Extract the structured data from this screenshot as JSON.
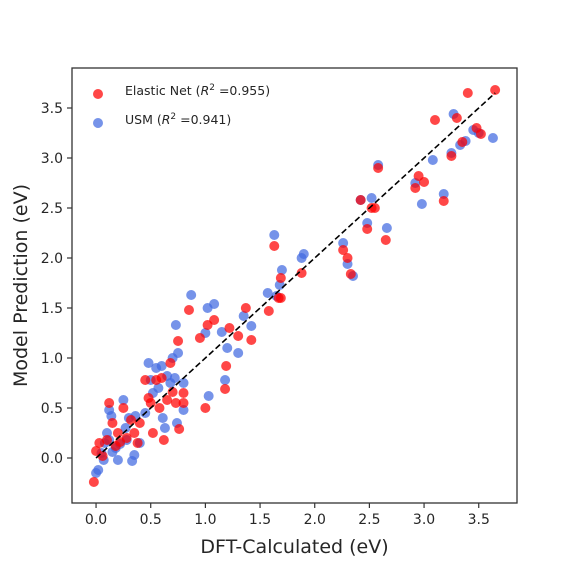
{
  "chart_data": {
    "type": "scatter",
    "title": "",
    "xlabel": "DFT-Calculated (eV)",
    "ylabel": "Model Prediction (eV)",
    "xlim": [
      -0.22,
      3.85
    ],
    "ylim": [
      -0.45,
      3.9
    ],
    "xticks": [
      "0.0",
      "0.5",
      "1.0",
      "1.5",
      "2.0",
      "2.5",
      "3.0",
      "3.5"
    ],
    "yticks": [
      "0.0",
      "0.5",
      "1.0",
      "1.5",
      "2.0",
      "2.5",
      "3.0",
      "3.5"
    ],
    "grid": false,
    "legend_position": "top-left",
    "reference_line": {
      "style": "dashed",
      "color": "#000000",
      "from": [
        0.0,
        0.0
      ],
      "to": [
        3.65,
        3.65
      ]
    },
    "series": [
      {
        "name": "USM",
        "r2": "0.941",
        "color": "#4169E1",
        "points": [
          [
            0.0,
            -0.15
          ],
          [
            0.02,
            -0.12
          ],
          [
            0.05,
            0.05
          ],
          [
            0.07,
            -0.02
          ],
          [
            0.08,
            0.15
          ],
          [
            0.1,
            0.25
          ],
          [
            0.12,
            0.48
          ],
          [
            0.12,
            0.18
          ],
          [
            0.14,
            0.42
          ],
          [
            0.15,
            0.06
          ],
          [
            0.18,
            0.1
          ],
          [
            0.2,
            -0.02
          ],
          [
            0.22,
            0.14
          ],
          [
            0.25,
            0.58
          ],
          [
            0.27,
            0.3
          ],
          [
            0.28,
            0.18
          ],
          [
            0.3,
            0.4
          ],
          [
            0.33,
            -0.03
          ],
          [
            0.35,
            0.03
          ],
          [
            0.36,
            0.42
          ],
          [
            0.4,
            0.15
          ],
          [
            0.45,
            0.45
          ],
          [
            0.48,
            0.95
          ],
          [
            0.5,
            0.78
          ],
          [
            0.52,
            0.65
          ],
          [
            0.55,
            0.9
          ],
          [
            0.57,
            0.7
          ],
          [
            0.6,
            0.92
          ],
          [
            0.61,
            0.4
          ],
          [
            0.63,
            0.3
          ],
          [
            0.65,
            0.82
          ],
          [
            0.68,
            0.75
          ],
          [
            0.7,
            1.0
          ],
          [
            0.72,
            0.8
          ],
          [
            0.73,
            1.33
          ],
          [
            0.74,
            0.35
          ],
          [
            0.75,
            1.05
          ],
          [
            0.8,
            0.75
          ],
          [
            0.8,
            0.48
          ],
          [
            0.87,
            1.63
          ],
          [
            1.0,
            1.25
          ],
          [
            1.02,
            1.5
          ],
          [
            1.03,
            0.62
          ],
          [
            1.08,
            1.54
          ],
          [
            1.15,
            1.26
          ],
          [
            1.18,
            0.78
          ],
          [
            1.2,
            1.1
          ],
          [
            1.3,
            1.05
          ],
          [
            1.35,
            1.42
          ],
          [
            1.42,
            1.32
          ],
          [
            1.57,
            1.65
          ],
          [
            1.63,
            2.23
          ],
          [
            1.65,
            1.62
          ],
          [
            1.68,
            1.73
          ],
          [
            1.7,
            1.88
          ],
          [
            1.88,
            2.0
          ],
          [
            1.9,
            2.04
          ],
          [
            2.26,
            2.15
          ],
          [
            2.3,
            1.94
          ],
          [
            2.35,
            1.82
          ],
          [
            2.42,
            2.58
          ],
          [
            2.48,
            2.35
          ],
          [
            2.52,
            2.6
          ],
          [
            2.58,
            2.93
          ],
          [
            2.66,
            2.3
          ],
          [
            2.92,
            2.75
          ],
          [
            2.98,
            2.54
          ],
          [
            3.08,
            2.98
          ],
          [
            3.18,
            2.64
          ],
          [
            3.25,
            3.05
          ],
          [
            3.27,
            3.44
          ],
          [
            3.33,
            3.13
          ],
          [
            3.38,
            3.17
          ],
          [
            3.45,
            3.28
          ],
          [
            3.5,
            3.25
          ],
          [
            3.63,
            3.2
          ]
        ]
      },
      {
        "name": "Elastic Net",
        "r2": "0.955",
        "color": "#FF0000",
        "points": [
          [
            -0.02,
            -0.24
          ],
          [
            0.0,
            0.07
          ],
          [
            0.03,
            0.15
          ],
          [
            0.06,
            0.02
          ],
          [
            0.1,
            0.18
          ],
          [
            0.12,
            0.55
          ],
          [
            0.15,
            0.35
          ],
          [
            0.18,
            0.12
          ],
          [
            0.2,
            0.25
          ],
          [
            0.22,
            0.16
          ],
          [
            0.25,
            0.5
          ],
          [
            0.28,
            0.2
          ],
          [
            0.32,
            0.38
          ],
          [
            0.35,
            0.25
          ],
          [
            0.38,
            0.15
          ],
          [
            0.4,
            0.35
          ],
          [
            0.45,
            0.78
          ],
          [
            0.48,
            0.6
          ],
          [
            0.5,
            0.55
          ],
          [
            0.52,
            0.25
          ],
          [
            0.55,
            0.78
          ],
          [
            0.58,
            0.5
          ],
          [
            0.6,
            0.8
          ],
          [
            0.62,
            0.18
          ],
          [
            0.65,
            0.58
          ],
          [
            0.68,
            0.95
          ],
          [
            0.7,
            0.66
          ],
          [
            0.73,
            0.55
          ],
          [
            0.75,
            1.17
          ],
          [
            0.76,
            0.29
          ],
          [
            0.8,
            0.65
          ],
          [
            0.8,
            0.55
          ],
          [
            0.85,
            1.48
          ],
          [
            0.95,
            1.2
          ],
          [
            1.0,
            0.5
          ],
          [
            1.02,
            1.33
          ],
          [
            1.08,
            1.38
          ],
          [
            1.18,
            0.69
          ],
          [
            1.19,
            0.92
          ],
          [
            1.22,
            1.3
          ],
          [
            1.3,
            1.22
          ],
          [
            1.37,
            1.5
          ],
          [
            1.42,
            1.18
          ],
          [
            1.58,
            1.47
          ],
          [
            1.63,
            2.12
          ],
          [
            1.67,
            1.6
          ],
          [
            1.69,
            1.6
          ],
          [
            1.69,
            1.8
          ],
          [
            1.88,
            1.85
          ],
          [
            2.26,
            2.08
          ],
          [
            2.3,
            2.0
          ],
          [
            2.33,
            1.84
          ],
          [
            2.42,
            2.58
          ],
          [
            2.48,
            2.29
          ],
          [
            2.52,
            2.5
          ],
          [
            2.55,
            2.5
          ],
          [
            2.58,
            2.9
          ],
          [
            2.65,
            2.18
          ],
          [
            2.92,
            2.7
          ],
          [
            2.95,
            2.82
          ],
          [
            3.0,
            2.76
          ],
          [
            3.1,
            3.38
          ],
          [
            3.18,
            2.57
          ],
          [
            3.25,
            3.02
          ],
          [
            3.3,
            3.4
          ],
          [
            3.35,
            3.16
          ],
          [
            3.4,
            3.65
          ],
          [
            3.48,
            3.3
          ],
          [
            3.52,
            3.24
          ],
          [
            3.65,
            3.68
          ]
        ]
      }
    ]
  }
}
